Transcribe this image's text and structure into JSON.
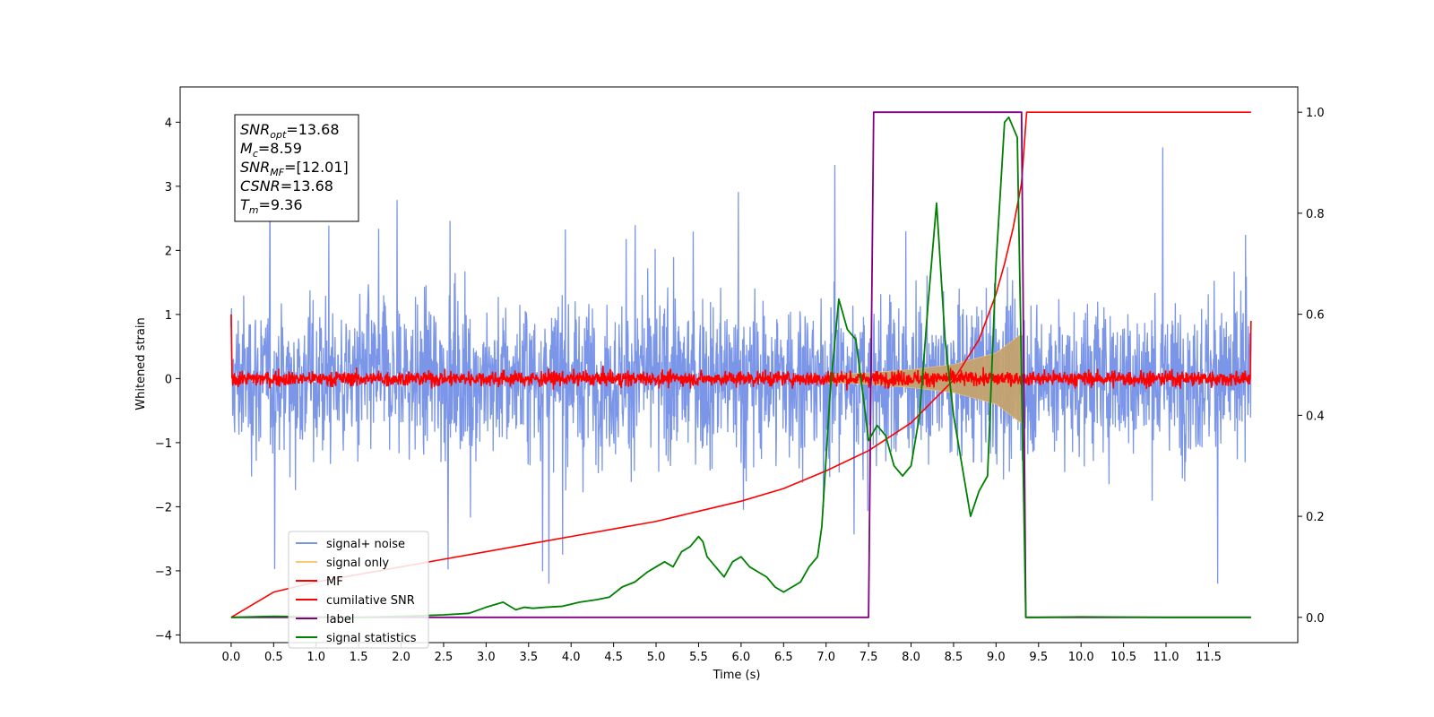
{
  "chart_data": {
    "type": "line",
    "xlabel": "Time (s)",
    "ylabel_left": "Whitened strain",
    "xlim": [
      -0.6,
      12.55
    ],
    "ylim_left": [
      -4.12,
      4.55
    ],
    "ylim_right": [
      -0.05,
      1.05
    ],
    "x_ticks": [
      "0.0",
      "0.5",
      "1.0",
      "1.5",
      "2.0",
      "2.5",
      "3.0",
      "3.5",
      "4.0",
      "4.5",
      "5.0",
      "5.5",
      "6.0",
      "6.5",
      "7.0",
      "7.5",
      "8.0",
      "8.5",
      "9.0",
      "9.5",
      "10.0",
      "10.5",
      "11.0",
      "11.5"
    ],
    "y_ticks_left": [
      "−4",
      "−3",
      "−2",
      "−1",
      "0",
      "1",
      "2",
      "3",
      "4"
    ],
    "y_ticks_right": [
      "0.0",
      "0.2",
      "0.4",
      "0.6",
      "0.8",
      "1.0"
    ],
    "annotation": [
      {
        "sym": "SNR",
        "sub": "opt",
        "val": "=13.68"
      },
      {
        "sym": "M",
        "sub": "c",
        "val": "=8.59"
      },
      {
        "sym": "SNR",
        "sub": "MF",
        "val": "=[12.01]"
      },
      {
        "sym": "CSNR",
        "sub": "",
        "val": "=13.68"
      },
      {
        "sym": "T",
        "sub": "m",
        "val": "=9.36"
      }
    ],
    "series": [
      {
        "name": "signal+ noise",
        "color": "#7b96e8",
        "axis": "left",
        "description_range": [
          -3.2,
          3.8
        ]
      },
      {
        "name": "signal only",
        "color": "#f5c97a",
        "axis": "left",
        "envelope": {
          "x": [
            7.0,
            7.5,
            8.0,
            8.5,
            9.0,
            9.3
          ],
          "amp": [
            0.06,
            0.09,
            0.14,
            0.22,
            0.4,
            0.7
          ]
        }
      },
      {
        "name": "MF",
        "color": "#ff0000",
        "axis": "left",
        "y_center": 0.0,
        "amplitude": 0.12
      },
      {
        "name": "cumilative SNR",
        "color": "#ff0000",
        "axis": "right",
        "x": [
          0.0,
          0.5,
          1.0,
          1.5,
          2.0,
          2.5,
          3.0,
          3.5,
          4.0,
          4.5,
          5.0,
          5.5,
          6.0,
          6.5,
          7.0,
          7.5,
          8.0,
          8.5,
          8.8,
          9.0,
          9.1,
          9.2,
          9.3,
          9.36,
          10.0,
          11.0,
          12.0
        ],
        "y": [
          0.0,
          0.05,
          0.07,
          0.085,
          0.1,
          0.115,
          0.13,
          0.145,
          0.16,
          0.175,
          0.19,
          0.21,
          0.23,
          0.255,
          0.29,
          0.33,
          0.385,
          0.47,
          0.55,
          0.64,
          0.7,
          0.77,
          0.86,
          1.0,
          1.0,
          1.0,
          1.0
        ]
      },
      {
        "name": "label",
        "color": "#800080",
        "axis": "right",
        "x": [
          0.0,
          7.5,
          7.56,
          9.3,
          9.35,
          12.0
        ],
        "y": [
          0.0,
          0.0,
          1.0,
          1.0,
          0.0,
          0.0
        ]
      },
      {
        "name": "signal statistics",
        "color": "#008000",
        "axis": "right",
        "x": [
          0.0,
          0.5,
          1.0,
          1.5,
          2.0,
          2.5,
          2.8,
          3.0,
          3.2,
          3.35,
          3.45,
          3.55,
          3.7,
          3.9,
          4.1,
          4.3,
          4.45,
          4.6,
          4.75,
          4.9,
          5.0,
          5.1,
          5.2,
          5.3,
          5.4,
          5.5,
          5.55,
          5.6,
          5.7,
          5.8,
          5.9,
          6.0,
          6.1,
          6.2,
          6.3,
          6.4,
          6.5,
          6.6,
          6.7,
          6.8,
          6.9,
          6.95,
          7.05,
          7.15,
          7.25,
          7.35,
          7.45,
          7.5,
          7.6,
          7.7,
          7.8,
          7.9,
          8.0,
          8.1,
          8.2,
          8.3,
          8.4,
          8.5,
          8.6,
          8.7,
          8.8,
          8.9,
          9.0,
          9.1,
          9.15,
          9.25,
          9.35,
          9.5,
          10.0,
          11.0,
          12.0
        ],
        "y": [
          0.0,
          0.002,
          0.001,
          0.0,
          0.002,
          0.005,
          0.008,
          0.02,
          0.03,
          0.015,
          0.02,
          0.018,
          0.02,
          0.022,
          0.03,
          0.035,
          0.04,
          0.06,
          0.07,
          0.09,
          0.1,
          0.11,
          0.1,
          0.13,
          0.14,
          0.16,
          0.15,
          0.12,
          0.1,
          0.08,
          0.11,
          0.12,
          0.1,
          0.09,
          0.08,
          0.06,
          0.05,
          0.06,
          0.07,
          0.1,
          0.12,
          0.18,
          0.45,
          0.63,
          0.57,
          0.55,
          0.42,
          0.35,
          0.38,
          0.36,
          0.3,
          0.28,
          0.3,
          0.4,
          0.62,
          0.82,
          0.55,
          0.4,
          0.3,
          0.2,
          0.25,
          0.28,
          0.7,
          0.98,
          0.99,
          0.95,
          0.0,
          0.0,
          0.001,
          0.0,
          0.0
        ]
      }
    ]
  }
}
